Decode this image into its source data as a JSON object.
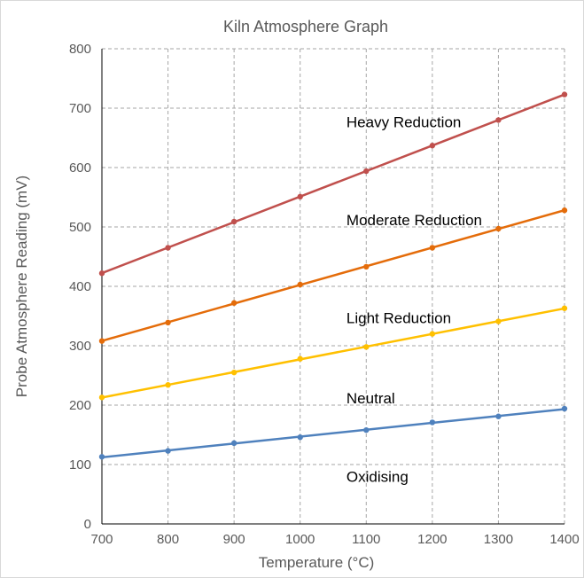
{
  "chart_data": {
    "type": "line",
    "title": "Kiln Atmosphere Graph",
    "xlabel": "Temperature (°C)",
    "ylabel": "Probe Atmosphere Reading (mV)",
    "xlim": [
      700,
      1400
    ],
    "ylim": [
      0,
      800
    ],
    "x_ticks": [
      700,
      800,
      900,
      1000,
      1100,
      1200,
      1300,
      1400
    ],
    "y_ticks": [
      0,
      100,
      200,
      300,
      400,
      500,
      600,
      700,
      800
    ],
    "grid": true,
    "legend": "none",
    "x": [
      700,
      800,
      900,
      1000,
      1100,
      1200,
      1300,
      1400
    ],
    "series": [
      {
        "color": "#C0504D",
        "values": [
          422,
          465,
          509,
          551,
          594,
          637,
          680,
          723
        ]
      },
      {
        "color": "#E46C0A",
        "values": [
          308,
          339,
          372,
          403,
          433,
          465,
          497,
          528
        ]
      },
      {
        "color": "#FFC000",
        "values": [
          213,
          234,
          255,
          278,
          298,
          320,
          341,
          363
        ]
      },
      {
        "color": "#4F81BD",
        "values": [
          113,
          123,
          136,
          146,
          158,
          171,
          181,
          194
        ]
      }
    ],
    "annotations": [
      {
        "text": "Heavy Reduction",
        "x": 1070,
        "y": 677
      },
      {
        "text": "Moderate Reduction",
        "x": 1070,
        "y": 512
      },
      {
        "text": "Light Reduction",
        "x": 1070,
        "y": 347
      },
      {
        "text": "Neutral",
        "x": 1070,
        "y": 212
      },
      {
        "text": "Oxidising",
        "x": 1070,
        "y": 80
      }
    ]
  }
}
